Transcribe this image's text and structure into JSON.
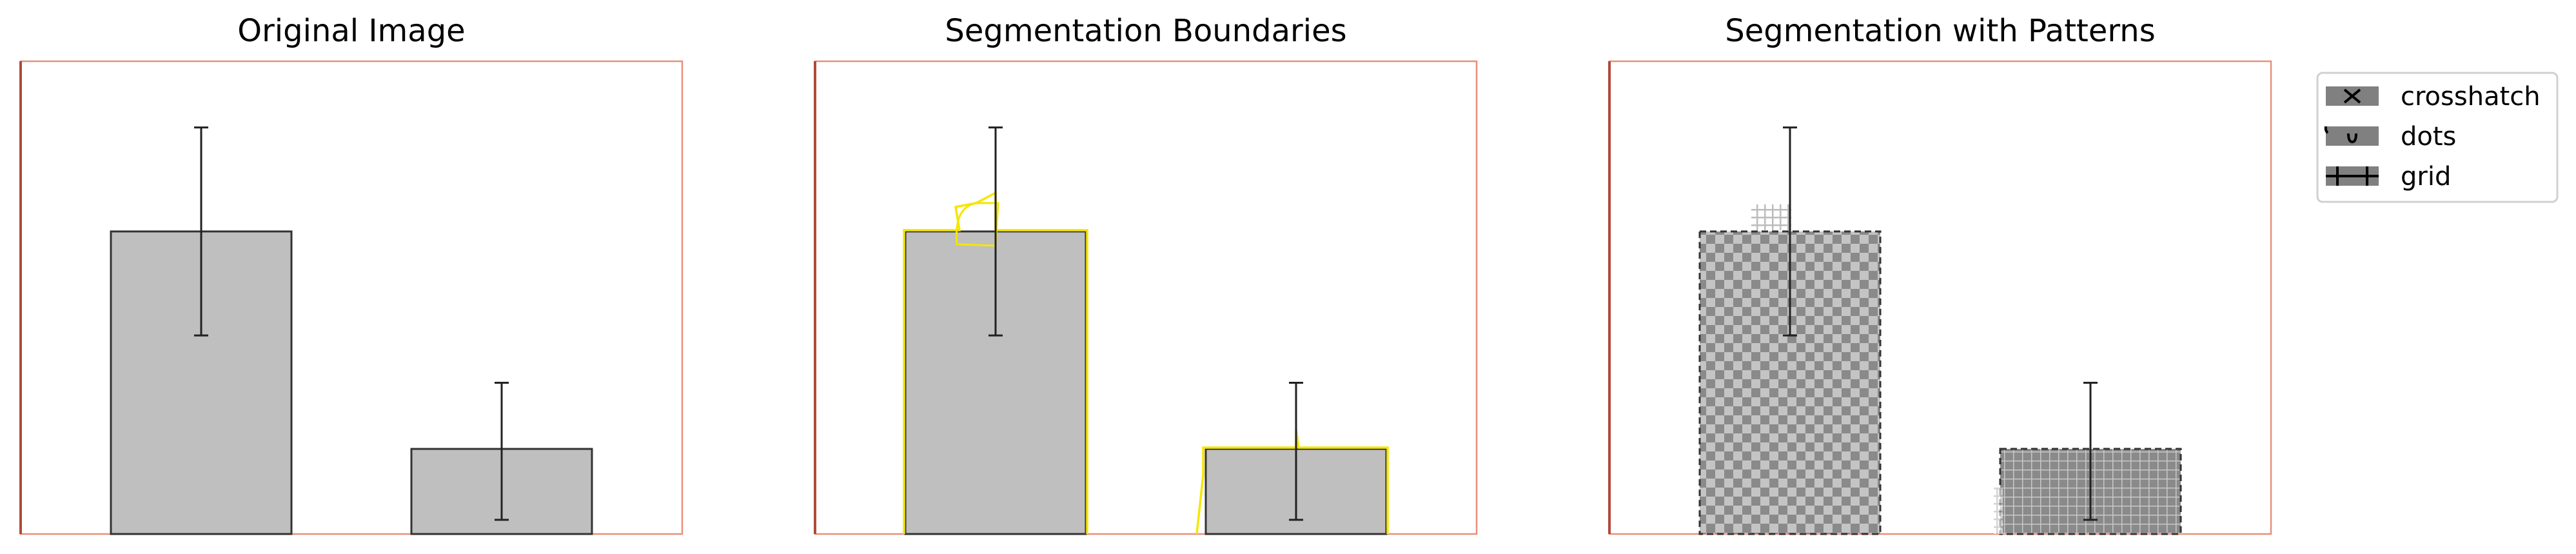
{
  "chart_data": [
    {
      "type": "bar",
      "title": "Original Image",
      "categories": [
        "",
        ""
      ],
      "values": [
        0.64,
        0.18
      ],
      "error_low": [
        0.42,
        0.03
      ],
      "error_high": [
        0.86,
        0.32
      ],
      "ylim": [
        0,
        1
      ],
      "grid": false,
      "frame_color": "#e8907a",
      "bar_color": "#bfbfbf",
      "edge_color": "#333333"
    },
    {
      "type": "bar",
      "title": "Segmentation Boundaries",
      "categories": [
        "",
        ""
      ],
      "values": [
        0.64,
        0.18
      ],
      "error_low": [
        0.42,
        0.03
      ],
      "error_high": [
        0.86,
        0.32
      ],
      "ylim": [
        0,
        1
      ],
      "grid": false,
      "frame_color": "#e8907a",
      "bar_color": "#bfbfbf",
      "edge_color": "#333333",
      "boundary_color": "#f5e600"
    },
    {
      "type": "bar",
      "title": "Segmentation with Patterns",
      "categories": [
        "",
        ""
      ],
      "values": [
        0.64,
        0.18
      ],
      "error_low": [
        0.42,
        0.03
      ],
      "error_high": [
        0.86,
        0.32
      ],
      "ylim": [
        0,
        1
      ],
      "grid": false,
      "frame_color": "#e8907a",
      "bar_color": "#8a8a8a",
      "edge_color": "#333333",
      "patterns": [
        "checker",
        "grid"
      ]
    }
  ],
  "legend": {
    "placement": "upper-right",
    "items": [
      {
        "label": "crosshatch",
        "icon": "crosshatch-icon"
      },
      {
        "label": "dots",
        "icon": "dots-icon"
      },
      {
        "label": "grid",
        "icon": "grid-icon"
      }
    ],
    "swatch_color": "#808080"
  }
}
